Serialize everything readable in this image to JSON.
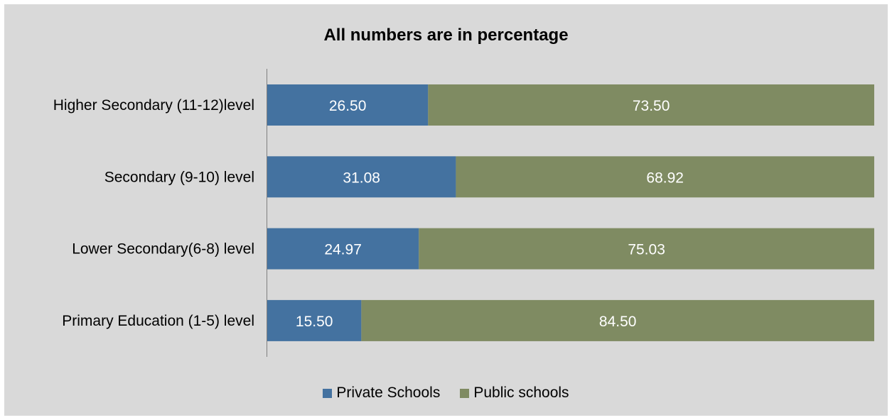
{
  "chart_data": {
    "type": "bar",
    "orientation": "horizontal",
    "stacked": true,
    "title": "All numbers are in percentage",
    "categories": [
      "Higher Secondary (11-12)level",
      "Secondary (9-10) level",
      "Lower Secondary(6-8) level",
      "Primary Education (1-5) level"
    ],
    "series": [
      {
        "name": "Private Schools",
        "color": "#4472a0",
        "values": [
          26.5,
          31.08,
          24.97,
          15.5
        ],
        "labels": [
          "26.50",
          "31.08",
          "24.97",
          "15.50"
        ]
      },
      {
        "name": "Public schools",
        "color": "#7f8b62",
        "values": [
          73.5,
          68.92,
          75.03,
          84.5
        ],
        "labels": [
          "73.50",
          "68.92",
          "75.03",
          "84.50"
        ]
      }
    ],
    "xlim": [
      0,
      100
    ],
    "grid": false,
    "legend_position": "bottom"
  }
}
